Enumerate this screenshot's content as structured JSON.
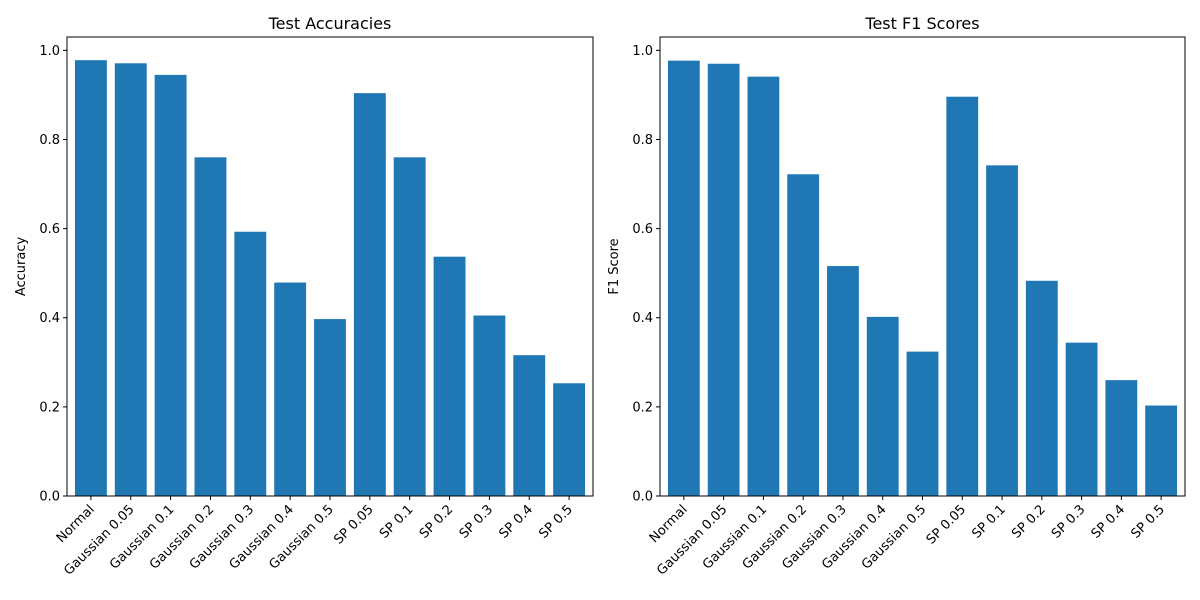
{
  "chart_data": [
    {
      "type": "bar",
      "title": "Test Accuracies",
      "xlabel": "",
      "ylabel": "Accuracy",
      "categories": [
        "Normal",
        "Gaussian 0.05",
        "Gaussian 0.1",
        "Gaussian 0.2",
        "Gaussian 0.3",
        "Gaussian 0.4",
        "Gaussian 0.5",
        "SP 0.05",
        "SP 0.1",
        "SP 0.2",
        "SP 0.3",
        "SP 0.4",
        "SP 0.5"
      ],
      "values": [
        0.978,
        0.971,
        0.945,
        0.76,
        0.593,
        0.479,
        0.397,
        0.904,
        0.76,
        0.537,
        0.405,
        0.316,
        0.253
      ],
      "ylim": [
        0,
        1.03
      ],
      "yticks": [
        "0.0",
        "0.2",
        "0.4",
        "0.6",
        "0.8",
        "1.0"
      ],
      "color": "#1f77b4",
      "grid": false
    },
    {
      "type": "bar",
      "title": "Test F1 Scores",
      "xlabel": "",
      "ylabel": "F1 Score",
      "categories": [
        "Normal",
        "Gaussian 0.05",
        "Gaussian 0.1",
        "Gaussian 0.2",
        "Gaussian 0.3",
        "Gaussian 0.4",
        "Gaussian 0.5",
        "SP 0.05",
        "SP 0.1",
        "SP 0.2",
        "SP 0.3",
        "SP 0.4",
        "SP 0.5"
      ],
      "values": [
        0.977,
        0.97,
        0.941,
        0.722,
        0.516,
        0.402,
        0.324,
        0.896,
        0.742,
        0.483,
        0.344,
        0.26,
        0.203
      ],
      "ylim": [
        0,
        1.03
      ],
      "yticks": [
        "0.0",
        "0.2",
        "0.4",
        "0.6",
        "0.8",
        "1.0"
      ],
      "color": "#1f77b4",
      "grid": false
    }
  ]
}
